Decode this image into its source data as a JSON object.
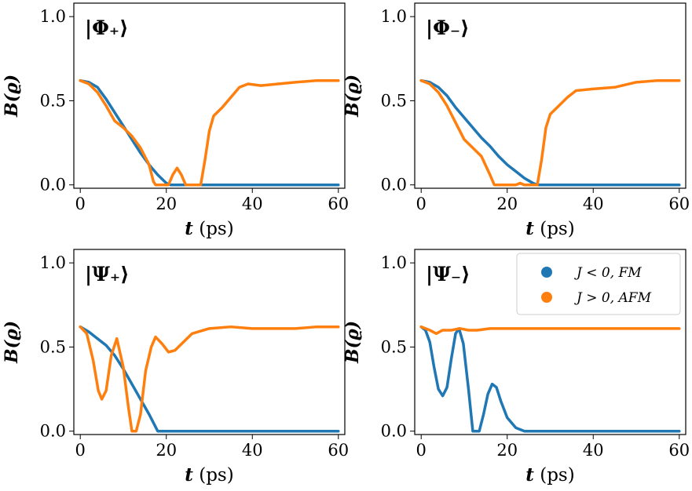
{
  "chart_data": [
    {
      "type": "line",
      "title": "|Φ₊⟩",
      "xlabel": "t (ps)",
      "ylabel": "B(ϱ)",
      "xlim": [
        -1.5,
        61.5
      ],
      "ylim": [
        -0.02,
        1.08
      ],
      "xticks": [
        0,
        20,
        40,
        60
      ],
      "xtick_labels": [
        "0",
        "20",
        "40",
        "60"
      ],
      "yticks": [
        0,
        0.5,
        1
      ],
      "ytick_labels": [
        "0.0",
        "0.5",
        "1.0"
      ],
      "grid": false,
      "series": [
        {
          "name": "J < 0, FM",
          "color": "#1f77b4",
          "points": [
            [
              0,
              0.62
            ],
            [
              2,
              0.61
            ],
            [
              4,
              0.58
            ],
            [
              6,
              0.51
            ],
            [
              8,
              0.43
            ],
            [
              10,
              0.35
            ],
            [
              12,
              0.27
            ],
            [
              14,
              0.19
            ],
            [
              16,
              0.12
            ],
            [
              18,
              0.06
            ],
            [
              20,
              0.01
            ],
            [
              21,
              0.0
            ],
            [
              30,
              0.0
            ],
            [
              40,
              0.0
            ],
            [
              50,
              0.0
            ],
            [
              60,
              0.0
            ]
          ]
        },
        {
          "name": "J > 0, AFM",
          "color": "#ff7f0e",
          "points": [
            [
              0,
              0.62
            ],
            [
              2,
              0.6
            ],
            [
              4,
              0.55
            ],
            [
              6,
              0.47
            ],
            [
              8,
              0.38
            ],
            [
              10,
              0.34
            ],
            [
              12,
              0.29
            ],
            [
              14,
              0.22
            ],
            [
              16,
              0.12
            ],
            [
              17,
              0.02
            ],
            [
              17.5,
              0.0
            ],
            [
              20.5,
              0.0
            ],
            [
              21.5,
              0.06
            ],
            [
              22.5,
              0.1
            ],
            [
              23.5,
              0.06
            ],
            [
              24.5,
              0.0
            ],
            [
              28,
              0.0
            ],
            [
              29,
              0.15
            ],
            [
              30,
              0.32
            ],
            [
              31,
              0.41
            ],
            [
              33,
              0.46
            ],
            [
              35,
              0.52
            ],
            [
              37,
              0.58
            ],
            [
              39,
              0.6
            ],
            [
              42,
              0.59
            ],
            [
              46,
              0.6
            ],
            [
              50,
              0.61
            ],
            [
              55,
              0.62
            ],
            [
              60,
              0.62
            ]
          ]
        }
      ]
    },
    {
      "type": "line",
      "title": "|Φ₋⟩",
      "xlabel": "t (ps)",
      "ylabel": "B(ϱ)",
      "xlim": [
        -1.5,
        61.5
      ],
      "ylim": [
        -0.02,
        1.08
      ],
      "xticks": [
        0,
        20,
        40,
        60
      ],
      "xtick_labels": [
        "0",
        "20",
        "40",
        "60"
      ],
      "yticks": [
        0,
        0.5,
        1
      ],
      "ytick_labels": [
        "0.0",
        "0.5",
        "1.0"
      ],
      "grid": false,
      "series": [
        {
          "name": "J < 0, FM",
          "color": "#1f77b4",
          "points": [
            [
              0,
              0.62
            ],
            [
              2,
              0.61
            ],
            [
              4,
              0.58
            ],
            [
              6,
              0.53
            ],
            [
              8,
              0.46
            ],
            [
              10,
              0.4
            ],
            [
              12,
              0.34
            ],
            [
              14,
              0.28
            ],
            [
              16,
              0.23
            ],
            [
              18,
              0.17
            ],
            [
              20,
              0.12
            ],
            [
              22,
              0.08
            ],
            [
              24,
              0.04
            ],
            [
              26,
              0.01
            ],
            [
              27,
              0.0
            ],
            [
              30,
              0.0
            ],
            [
              40,
              0.0
            ],
            [
              50,
              0.0
            ],
            [
              60,
              0.0
            ]
          ]
        },
        {
          "name": "J > 0, AFM",
          "color": "#ff7f0e",
          "points": [
            [
              0,
              0.62
            ],
            [
              2,
              0.6
            ],
            [
              4,
              0.55
            ],
            [
              6,
              0.47
            ],
            [
              8,
              0.37
            ],
            [
              10,
              0.27
            ],
            [
              12,
              0.22
            ],
            [
              14,
              0.17
            ],
            [
              16,
              0.06
            ],
            [
              17,
              0.0
            ],
            [
              22,
              0.0
            ],
            [
              23,
              0.01
            ],
            [
              24,
              0.0
            ],
            [
              27,
              0.0
            ],
            [
              28,
              0.15
            ],
            [
              29,
              0.34
            ],
            [
              30,
              0.42
            ],
            [
              32,
              0.47
            ],
            [
              34,
              0.52
            ],
            [
              36,
              0.56
            ],
            [
              40,
              0.57
            ],
            [
              45,
              0.58
            ],
            [
              50,
              0.61
            ],
            [
              55,
              0.62
            ],
            [
              60,
              0.62
            ]
          ]
        }
      ]
    },
    {
      "type": "line",
      "title": "|Ψ₊⟩",
      "xlabel": "t (ps)",
      "ylabel": "B(ϱ)",
      "xlim": [
        -1.5,
        61.5
      ],
      "ylim": [
        -0.02,
        1.08
      ],
      "xticks": [
        0,
        20,
        40,
        60
      ],
      "xtick_labels": [
        "0",
        "20",
        "40",
        "60"
      ],
      "yticks": [
        0,
        0.5,
        1
      ],
      "ytick_labels": [
        "0.0",
        "0.5",
        "1.0"
      ],
      "grid": false,
      "series": [
        {
          "name": "J < 0, FM",
          "color": "#1f77b4",
          "points": [
            [
              0,
              0.62
            ],
            [
              2,
              0.59
            ],
            [
              4,
              0.55
            ],
            [
              6,
              0.51
            ],
            [
              8,
              0.45
            ],
            [
              10,
              0.37
            ],
            [
              12,
              0.28
            ],
            [
              14,
              0.19
            ],
            [
              16,
              0.1
            ],
            [
              17,
              0.05
            ],
            [
              18,
              0.0
            ],
            [
              20,
              0.0
            ],
            [
              30,
              0.0
            ],
            [
              40,
              0.0
            ],
            [
              50,
              0.0
            ],
            [
              60,
              0.0
            ]
          ]
        },
        {
          "name": "J > 0, AFM",
          "color": "#ff7f0e",
          "points": [
            [
              0,
              0.62
            ],
            [
              1.5,
              0.58
            ],
            [
              3,
              0.42
            ],
            [
              4.2,
              0.24
            ],
            [
              5,
              0.19
            ],
            [
              6,
              0.24
            ],
            [
              7.2,
              0.45
            ],
            [
              8.5,
              0.55
            ],
            [
              10,
              0.38
            ],
            [
              11.2,
              0.14
            ],
            [
              12,
              0.0
            ],
            [
              13,
              0.0
            ],
            [
              14,
              0.1
            ],
            [
              15.2,
              0.36
            ],
            [
              16.5,
              0.5
            ],
            [
              17.5,
              0.56
            ],
            [
              19,
              0.52
            ],
            [
              20.5,
              0.47
            ],
            [
              22,
              0.48
            ],
            [
              24,
              0.53
            ],
            [
              26,
              0.58
            ],
            [
              30,
              0.61
            ],
            [
              35,
              0.62
            ],
            [
              40,
              0.61
            ],
            [
              45,
              0.61
            ],
            [
              50,
              0.61
            ],
            [
              55,
              0.62
            ],
            [
              60,
              0.62
            ]
          ]
        }
      ]
    },
    {
      "type": "line",
      "title": "|Ψ₋⟩",
      "xlabel": "t (ps)",
      "ylabel": "B(ϱ)",
      "xlim": [
        -1.5,
        61.5
      ],
      "ylim": [
        -0.02,
        1.08
      ],
      "xticks": [
        0,
        20,
        40,
        60
      ],
      "xtick_labels": [
        "0",
        "20",
        "40",
        "60"
      ],
      "yticks": [
        0,
        0.5,
        1
      ],
      "ytick_labels": [
        "0.0",
        "0.5",
        "1.0"
      ],
      "grid": false,
      "legend": "top-right",
      "series": [
        {
          "name": "J < 0, FM",
          "color": "#1f77b4",
          "points": [
            [
              0,
              0.62
            ],
            [
              1,
              0.6
            ],
            [
              2,
              0.53
            ],
            [
              3,
              0.38
            ],
            [
              4,
              0.25
            ],
            [
              5,
              0.21
            ],
            [
              6,
              0.26
            ],
            [
              7,
              0.43
            ],
            [
              8,
              0.58
            ],
            [
              8.8,
              0.61
            ],
            [
              9.8,
              0.52
            ],
            [
              11,
              0.25
            ],
            [
              12,
              0.0
            ],
            [
              13.5,
              0.0
            ],
            [
              14.5,
              0.1
            ],
            [
              15.5,
              0.22
            ],
            [
              16.5,
              0.28
            ],
            [
              17.5,
              0.26
            ],
            [
              18.5,
              0.18
            ],
            [
              20,
              0.08
            ],
            [
              22,
              0.02
            ],
            [
              24,
              0.0
            ],
            [
              30,
              0.0
            ],
            [
              40,
              0.0
            ],
            [
              50,
              0.0
            ],
            [
              60,
              0.0
            ]
          ]
        },
        {
          "name": "J > 0, AFM",
          "color": "#ff7f0e",
          "points": [
            [
              0,
              0.62
            ],
            [
              2,
              0.6
            ],
            [
              3.5,
              0.58
            ],
            [
              5,
              0.6
            ],
            [
              7,
              0.6
            ],
            [
              9,
              0.61
            ],
            [
              11,
              0.6
            ],
            [
              13,
              0.6
            ],
            [
              16,
              0.61
            ],
            [
              20,
              0.61
            ],
            [
              25,
              0.61
            ],
            [
              30,
              0.61
            ],
            [
              40,
              0.61
            ],
            [
              50,
              0.61
            ],
            [
              60,
              0.61
            ]
          ]
        }
      ]
    }
  ],
  "legend": {
    "entries": [
      {
        "label": "J < 0,  FM",
        "color": "#1f77b4"
      },
      {
        "label": "J > 0,  AFM",
        "color": "#ff7f0e"
      }
    ]
  }
}
